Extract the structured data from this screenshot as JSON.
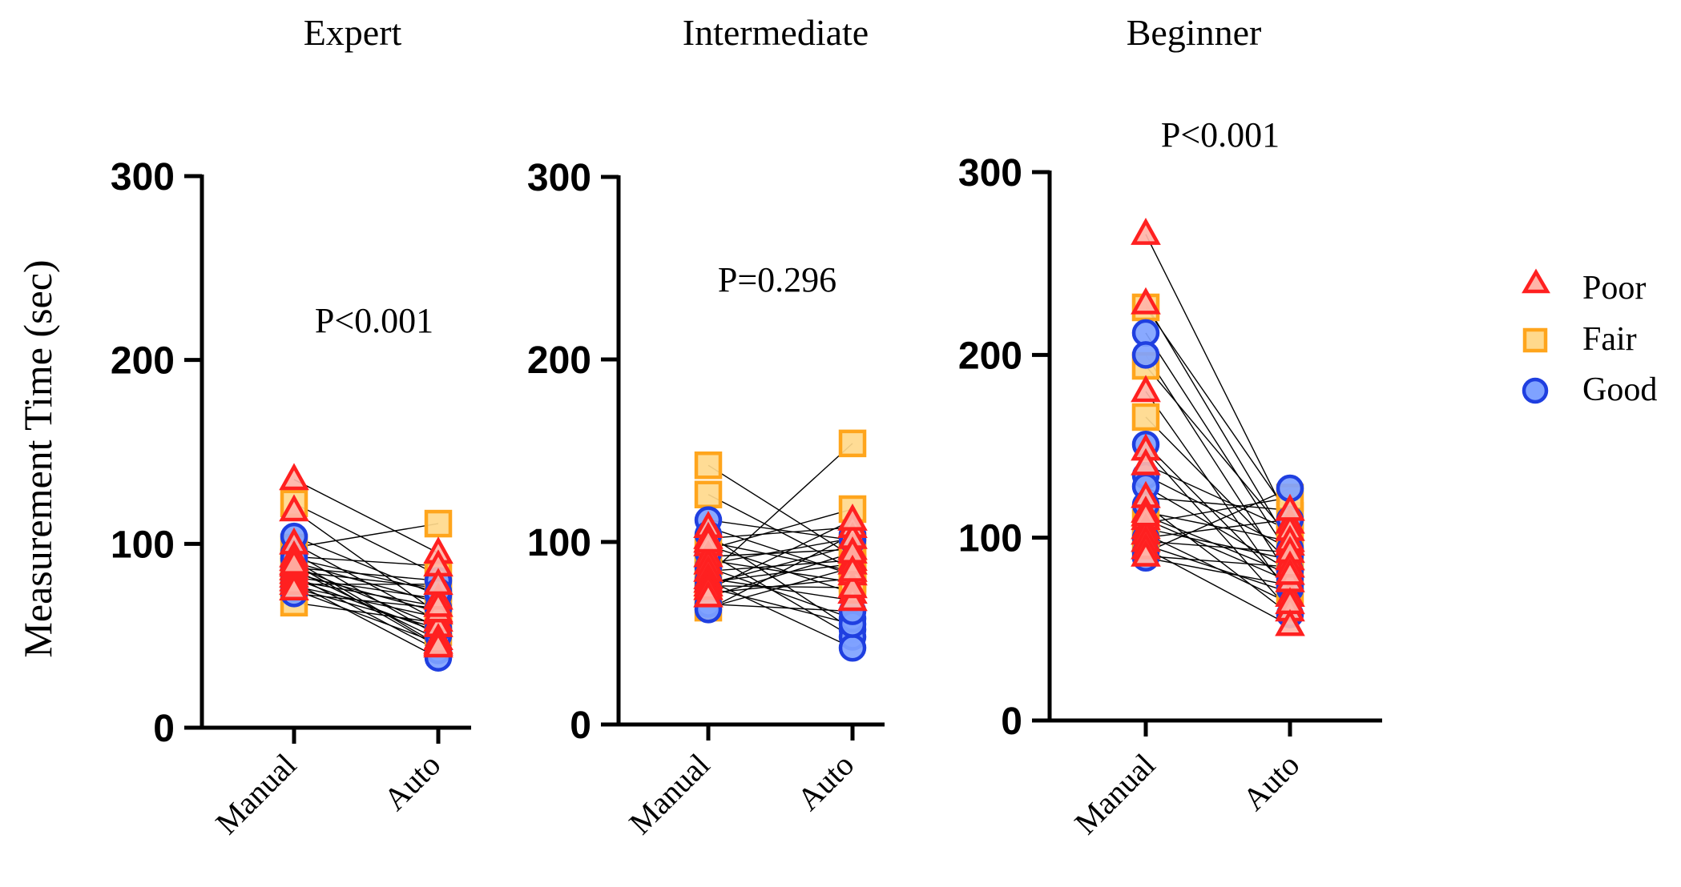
{
  "chart_data": {
    "type": "scatter",
    "ylabel": "Measurement Time (sec)",
    "ylim": [
      0,
      300
    ],
    "yticks": [
      0,
      100,
      200,
      300
    ],
    "categories": [
      "Manual",
      "Auto"
    ],
    "legend": {
      "position": "right",
      "entries": [
        {
          "label": "Poor",
          "marker": "triangle",
          "color": "#ff2020"
        },
        {
          "label": "Fair",
          "marker": "square",
          "color": "#ffa51c"
        },
        {
          "label": "Good",
          "marker": "circle",
          "color": "#1f3fe0"
        }
      ]
    },
    "panels": [
      {
        "title": "Expert",
        "p_value": "P<0.001",
        "pairs": [
          {
            "q": "Poor",
            "manual": 135,
            "auto": 95
          },
          {
            "q": "Poor",
            "manual": 118,
            "auto": 62
          },
          {
            "q": "Fair",
            "manual": 122,
            "auto": 83
          },
          {
            "q": "Good",
            "manual": 104,
            "auto": 72
          },
          {
            "q": "Poor",
            "manual": 100,
            "auto": 58
          },
          {
            "q": "Fair",
            "manual": 98,
            "auto": 111
          },
          {
            "q": "Good",
            "manual": 95,
            "auto": 50
          },
          {
            "q": "Poor",
            "manual": 93,
            "auto": 88
          },
          {
            "q": "Poor",
            "manual": 91,
            "auto": 45
          },
          {
            "q": "Fair",
            "manual": 90,
            "auto": 68
          },
          {
            "q": "Poor",
            "manual": 88,
            "auto": 55
          },
          {
            "q": "Good",
            "manual": 87,
            "auto": 80
          },
          {
            "q": "Poor",
            "manual": 86,
            "auto": 48
          },
          {
            "q": "Fair",
            "manual": 85,
            "auto": 76
          },
          {
            "q": "Poor",
            "manual": 84,
            "auto": 63
          },
          {
            "q": "Good",
            "manual": 83,
            "auto": 42
          },
          {
            "q": "Poor",
            "manual": 82,
            "auto": 70
          },
          {
            "q": "Fair",
            "manual": 81,
            "auto": 52
          },
          {
            "q": "Poor",
            "manual": 80,
            "auto": 66
          },
          {
            "q": "Good",
            "manual": 79,
            "auto": 38
          },
          {
            "q": "Poor",
            "manual": 78,
            "auto": 78
          },
          {
            "q": "Fair",
            "manual": 77,
            "auto": 60
          },
          {
            "q": "Good",
            "manual": 76,
            "auto": 54
          },
          {
            "q": "Poor",
            "manual": 75,
            "auto": 46
          },
          {
            "q": "Good",
            "manual": 73,
            "auto": 65
          },
          {
            "q": "Fair",
            "manual": 68,
            "auto": 57
          },
          {
            "q": "Poor",
            "manual": 89,
            "auto": 44
          },
          {
            "q": "Good",
            "manual": 92,
            "auto": 74
          }
        ]
      },
      {
        "title": "Intermediate",
        "p_value": "P=0.296",
        "pairs": [
          {
            "q": "Fair",
            "manual": 142,
            "auto": 92
          },
          {
            "q": "Fair",
            "manual": 126,
            "auto": 85
          },
          {
            "q": "Good",
            "manual": 112,
            "auto": 101
          },
          {
            "q": "Poor",
            "manual": 108,
            "auto": 82
          },
          {
            "q": "Good",
            "manual": 104,
            "auto": 52
          },
          {
            "q": "Poor",
            "manual": 102,
            "auto": 108
          },
          {
            "q": "Poor",
            "manual": 98,
            "auto": 72
          },
          {
            "q": "Fair",
            "manual": 96,
            "auto": 118
          },
          {
            "q": "Good",
            "manual": 94,
            "auto": 48
          },
          {
            "q": "Poor",
            "manual": 92,
            "auto": 96
          },
          {
            "q": "Fair",
            "manual": 90,
            "auto": 78
          },
          {
            "q": "Poor",
            "manual": 88,
            "auto": 102
          },
          {
            "q": "Good",
            "manual": 86,
            "auto": 58
          },
          {
            "q": "Poor",
            "manual": 84,
            "auto": 90
          },
          {
            "q": "Fair",
            "manual": 82,
            "auto": 154
          },
          {
            "q": "Poor",
            "manual": 80,
            "auto": 68
          },
          {
            "q": "Good",
            "manual": 79,
            "auto": 42
          },
          {
            "q": "Poor",
            "manual": 78,
            "auto": 88
          },
          {
            "q": "Fair",
            "manual": 77,
            "auto": 98
          },
          {
            "q": "Poor",
            "manual": 76,
            "auto": 75
          },
          {
            "q": "Good",
            "manual": 75,
            "auto": 55
          },
          {
            "q": "Poor",
            "manual": 74,
            "auto": 112
          },
          {
            "q": "Fair",
            "manual": 72,
            "auto": 80
          },
          {
            "q": "Poor",
            "manual": 70,
            "auto": 94
          },
          {
            "q": "Good",
            "manual": 66,
            "auto": 62
          },
          {
            "q": "Fair",
            "manual": 64,
            "auto": 86
          },
          {
            "q": "Good",
            "manual": 63,
            "auto": 104
          },
          {
            "q": "Poor",
            "manual": 100,
            "auto": 84
          }
        ]
      },
      {
        "title": "Beginner",
        "p_value": "P<0.001",
        "pairs": [
          {
            "q": "Poor",
            "manual": 266,
            "auto": 108
          },
          {
            "q": "Poor",
            "manual": 228,
            "auto": 96
          },
          {
            "q": "Fair",
            "manual": 226,
            "auto": 112
          },
          {
            "q": "Good",
            "manual": 212,
            "auto": 90
          },
          {
            "q": "Good",
            "manual": 200,
            "auto": 78
          },
          {
            "q": "Fair",
            "manual": 194,
            "auto": 100
          },
          {
            "q": "Poor",
            "manual": 180,
            "auto": 68
          },
          {
            "q": "Fair",
            "manual": 166,
            "auto": 86
          },
          {
            "q": "Good",
            "manual": 151,
            "auto": 72
          },
          {
            "q": "Poor",
            "manual": 148,
            "auto": 60
          },
          {
            "q": "Poor",
            "manual": 140,
            "auto": 104
          },
          {
            "q": "Good",
            "manual": 134,
            "auto": 94
          },
          {
            "q": "Good",
            "manual": 128,
            "auto": 82
          },
          {
            "q": "Poor",
            "manual": 122,
            "auto": 115
          },
          {
            "q": "Good",
            "manual": 118,
            "auto": 58
          },
          {
            "q": "Poor",
            "manual": 114,
            "auto": 98
          },
          {
            "q": "Poor",
            "manual": 110,
            "auto": 76
          },
          {
            "q": "Fair",
            "manual": 108,
            "auto": 122
          },
          {
            "q": "Poor",
            "manual": 105,
            "auto": 88
          },
          {
            "q": "Poor",
            "manual": 102,
            "auto": 64
          },
          {
            "q": "Good",
            "manual": 100,
            "auto": 110
          },
          {
            "q": "Poor",
            "manual": 98,
            "auto": 92
          },
          {
            "q": "Fair",
            "manual": 96,
            "auto": 70
          },
          {
            "q": "Poor",
            "manual": 94,
            "auto": 52
          },
          {
            "q": "Good",
            "manual": 92,
            "auto": 127
          },
          {
            "q": "Poor",
            "manual": 90,
            "auto": 84
          },
          {
            "q": "Good",
            "manual": 89,
            "auto": 74
          },
          {
            "q": "Poor",
            "manual": 112,
            "auto": 80
          }
        ]
      }
    ]
  }
}
